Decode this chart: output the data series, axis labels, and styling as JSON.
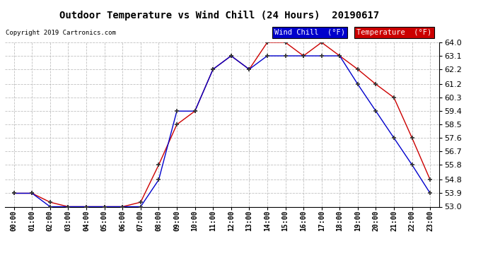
{
  "title": "Outdoor Temperature vs Wind Chill (24 Hours)  20190617",
  "copyright": "Copyright 2019 Cartronics.com",
  "x_labels": [
    "00:00",
    "01:00",
    "02:00",
    "03:00",
    "04:00",
    "05:00",
    "06:00",
    "07:00",
    "08:00",
    "09:00",
    "10:00",
    "11:00",
    "12:00",
    "13:00",
    "14:00",
    "15:00",
    "16:00",
    "17:00",
    "18:00",
    "19:00",
    "20:00",
    "21:00",
    "22:00",
    "23:00"
  ],
  "ylim": [
    53.0,
    64.0
  ],
  "yticks": [
    53.0,
    53.9,
    54.8,
    55.8,
    56.7,
    57.6,
    58.5,
    59.4,
    60.3,
    61.2,
    62.2,
    63.1,
    64.0
  ],
  "temperature": [
    53.9,
    53.9,
    53.3,
    53.0,
    53.0,
    53.0,
    53.0,
    53.3,
    55.8,
    58.5,
    59.4,
    62.2,
    63.1,
    62.2,
    64.0,
    64.0,
    63.1,
    64.0,
    63.1,
    62.2,
    61.2,
    60.3,
    57.6,
    54.8
  ],
  "wind_chill": [
    53.9,
    53.9,
    53.0,
    53.0,
    53.0,
    53.0,
    53.0,
    53.0,
    54.8,
    59.4,
    59.4,
    62.2,
    63.1,
    62.2,
    63.1,
    63.1,
    63.1,
    63.1,
    63.1,
    61.2,
    59.4,
    57.6,
    55.8,
    53.9
  ],
  "temp_color": "#cc0000",
  "wind_color": "#0000cc",
  "bg_color": "#ffffff",
  "grid_color": "#b0b0b0",
  "legend_wind_bg": "#0000cc",
  "legend_temp_bg": "#cc0000",
  "legend_wind_text": "Wind Chill  (°F)",
  "legend_temp_text": "Temperature  (°F)"
}
